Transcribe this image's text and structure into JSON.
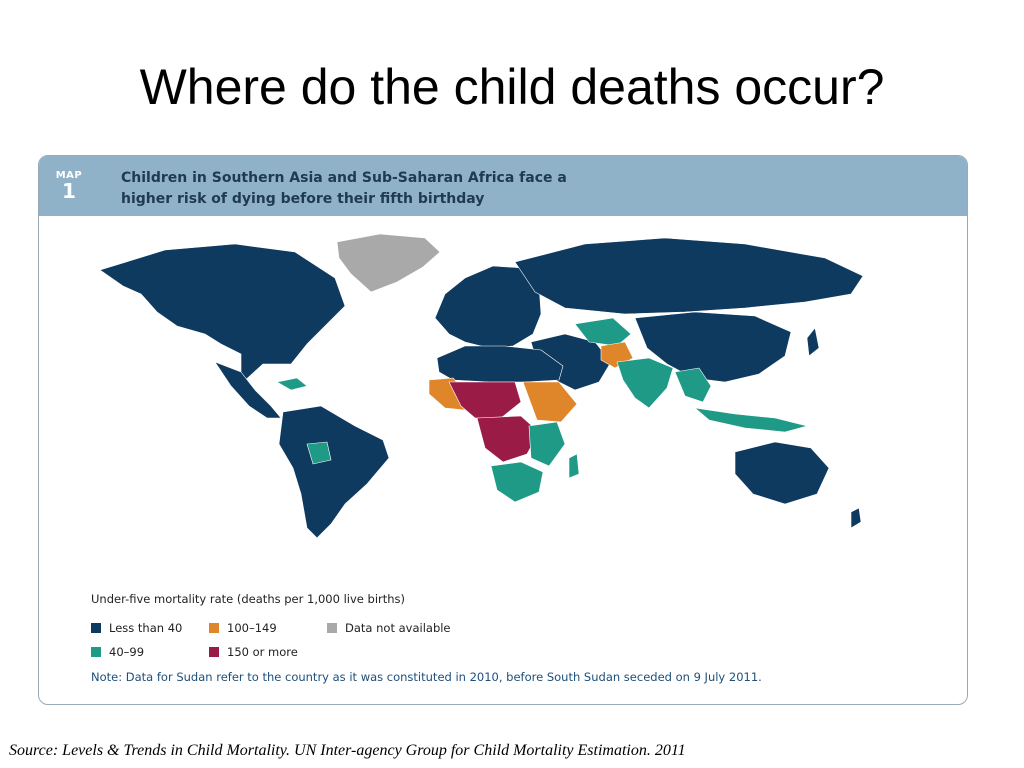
{
  "slide": {
    "title": "Where do the child deaths occur?",
    "source": "Source: Levels & Trends in Child Mortality. UN Inter-agency Group for Child Mortality Estimation. 2011"
  },
  "map": {
    "tag_word": "MAP",
    "tag_number": "1",
    "header_line1": "Children in Southern Asia and Sub-Saharan Africa face a",
    "header_line2": "higher risk of dying before their fifth birthday",
    "note": "Note: Data for Sudan refer to the country as it was constituted in 2010, before South Sudan seceded on 9 July 2011."
  },
  "legend": {
    "title": "Under-five mortality rate (deaths per 1,000 live births)",
    "items": [
      {
        "label": "Less than 40",
        "color": "#0f3a5f"
      },
      {
        "label": "100–149",
        "color": "#e0862a"
      },
      {
        "label": "Data not available",
        "color": "#a9a9a9"
      },
      {
        "label": "40–99",
        "color": "#1f9a87"
      },
      {
        "label": "150 or more",
        "color": "#9b1b47"
      }
    ]
  },
  "colors": {
    "low": "#0f3a5f",
    "mid_low": "#1f9a87",
    "mid_high": "#e0862a",
    "high": "#9b1b47",
    "na": "#a9a9a9",
    "header_band": "#8fb2c8"
  }
}
